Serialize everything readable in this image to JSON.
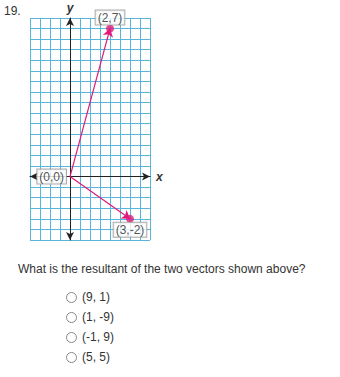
{
  "number": "19.",
  "chart_data": {
    "type": "vector",
    "x_label": "x",
    "y_label": "y",
    "xlim": [
      -2,
      4
    ],
    "ylim": [
      -3,
      7.5
    ],
    "xticks": [
      -2,
      -1.5,
      -1,
      -0.5,
      0,
      0.5,
      1,
      1.5,
      2,
      2.5,
      3,
      3.5,
      4
    ],
    "yticks": [
      -3,
      -2.5,
      -2,
      -1.5,
      -1,
      -0.5,
      0,
      0.5,
      1,
      1.5,
      2,
      2.5,
      3,
      3.5,
      4,
      4.5,
      5,
      5.5,
      6,
      6.5,
      7,
      7.5
    ],
    "grid": true,
    "tick_labels": false,
    "color": "#e0197a",
    "marker": "circle",
    "vectors": [
      {
        "start": [
          0,
          0
        ],
        "end": [
          2,
          7
        ]
      },
      {
        "start": [
          0,
          0
        ],
        "end": [
          3,
          -2
        ]
      }
    ],
    "annotations": [
      {
        "text": "(2,7)",
        "x": 2,
        "y": 7
      },
      {
        "text": "(0,0)",
        "x": 0,
        "y": 0
      },
      {
        "text": "(3,-2)",
        "x": 3,
        "y": -2
      }
    ]
  },
  "question": "What is the resultant of the two vectors shown above?",
  "options": [
    "(9, 1)",
    "(1, -9)",
    "(-1, 9)",
    "(5, 5)"
  ]
}
